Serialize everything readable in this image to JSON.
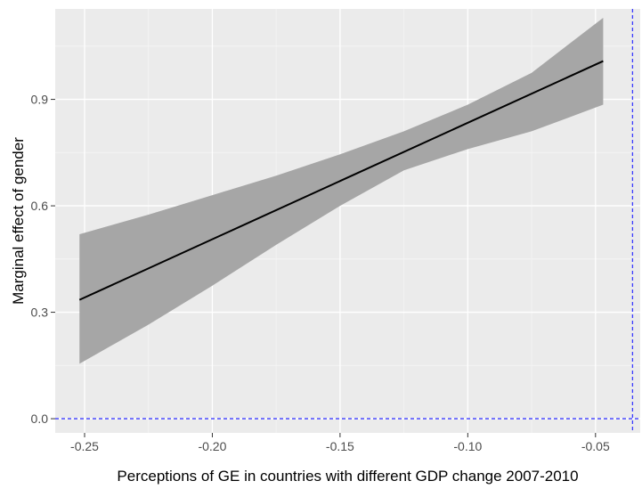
{
  "chart_data": {
    "type": "line",
    "title": "",
    "xlabel": "Perceptions of GE in countries with different GDP change 2007-2010",
    "ylabel": "Marginal effect of gender",
    "xlim": [
      -0.2615,
      -0.0325
    ],
    "ylim": [
      -0.04,
      1.155
    ],
    "x_ticks": [
      -0.25,
      -0.2,
      -0.15,
      -0.1,
      -0.05
    ],
    "x_tick_labels": [
      "-0.25",
      "-0.20",
      "-0.15",
      "-0.10",
      "-0.05"
    ],
    "y_ticks": [
      0.0,
      0.3,
      0.6,
      0.9
    ],
    "y_tick_labels": [
      "0.0",
      "0.3",
      "0.6",
      "0.9"
    ],
    "grid": true,
    "series": [
      {
        "type": "line",
        "x": [
          -0.252,
          -0.047
        ],
        "y": [
          0.335,
          1.008
        ]
      }
    ],
    "ribbon": {
      "x": [
        -0.252,
        -0.225,
        -0.2,
        -0.175,
        -0.15,
        -0.125,
        -0.1,
        -0.075,
        -0.047
      ],
      "lower": [
        0.155,
        0.265,
        0.375,
        0.49,
        0.6,
        0.7,
        0.76,
        0.81,
        0.885
      ],
      "upper": [
        0.52,
        0.575,
        0.63,
        0.685,
        0.745,
        0.81,
        0.885,
        0.975,
        1.13
      ]
    },
    "reference_lines": [
      {
        "orientation": "horizontal",
        "value": 0.0,
        "style": "dashed",
        "color": "#3b3bff"
      },
      {
        "orientation": "vertical",
        "value": -0.0355,
        "style": "dashed",
        "color": "#3b3bff"
      }
    ],
    "colors": {
      "panel_background": "#ebebeb",
      "grid_major": "#ffffff",
      "ribbon": "#a6a6a6",
      "line": "#000000"
    }
  }
}
